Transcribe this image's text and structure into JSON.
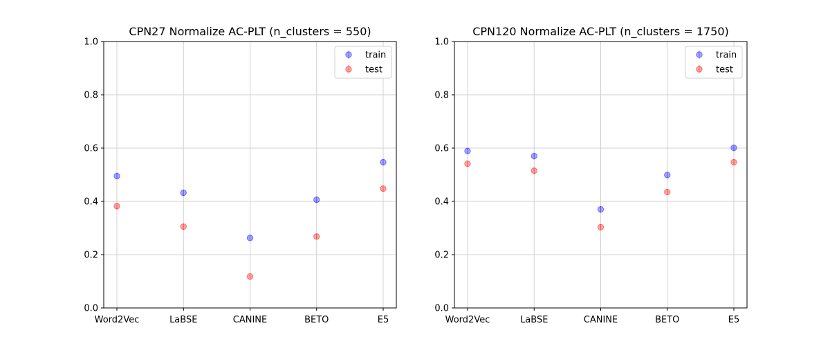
{
  "chart_data": [
    {
      "type": "scatter",
      "title": "CPN27 Normalize AC-PLT (n_clusters = 550)",
      "categories": [
        "Word2Vec",
        "LaBSE",
        "CANINE",
        "BETO",
        "E5"
      ],
      "ylim": [
        0,
        1
      ],
      "yticks": [
        "0.0",
        "0.2",
        "0.4",
        "0.6",
        "0.8",
        "1.0"
      ],
      "grid": true,
      "legend_position": "top-right",
      "series": [
        {
          "name": "train",
          "color": "#0000ff",
          "values": [
            0.495,
            0.432,
            0.263,
            0.406,
            0.547
          ]
        },
        {
          "name": "test",
          "color": "#ff0000",
          "values": [
            0.382,
            0.305,
            0.118,
            0.268,
            0.448
          ]
        }
      ]
    },
    {
      "type": "scatter",
      "title": "CPN120 Normalize AC-PLT (n_clusters = 1750)",
      "categories": [
        "Word2Vec",
        "LaBSE",
        "CANINE",
        "BETO",
        "E5"
      ],
      "ylim": [
        0,
        1
      ],
      "yticks": [
        "0.0",
        "0.2",
        "0.4",
        "0.6",
        "0.8",
        "1.0"
      ],
      "grid": true,
      "legend_position": "top-right",
      "series": [
        {
          "name": "train",
          "color": "#0000ff",
          "values": [
            0.589,
            0.57,
            0.37,
            0.499,
            0.601
          ]
        },
        {
          "name": "test",
          "color": "#ff0000",
          "values": [
            0.541,
            0.515,
            0.303,
            0.435,
            0.547
          ]
        }
      ]
    }
  ]
}
